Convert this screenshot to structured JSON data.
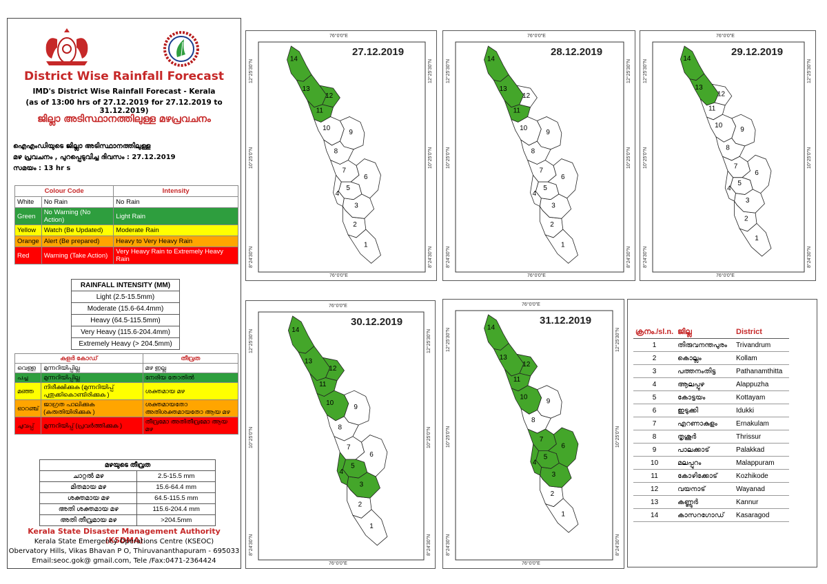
{
  "header": {
    "title": "District Wise Rainfall Forecast",
    "subtitle1": "IMD's District Wise Rainfall Forecast - Kerala",
    "subtitle2": "(as of 13:00 hrs of 27.12.2019  for 27.12.2019  to 31.12.2019)",
    "mal_title": "ജില്ലാ അടിസ്ഥാനത്തിലുള്ള മഴപ്രവചനം",
    "mal_line1": "ഐഎംഡിയുടെ ജില്ലാ      അടിസ്ഥാനത്തിലുള്ള",
    "mal_line2": "മഴ പ്രവചനം , പുറപ്പെടുവിച്ച      ദിവസം : 27.12.2019",
    "mal_line3": "സമയം : 13  hr s"
  },
  "colour_code": {
    "headers": [
      "Colour Code",
      "Intensity"
    ],
    "rows": [
      {
        "name": "White",
        "meaning": "No Rain",
        "intensity": "No Rain",
        "color": "#ffffff"
      },
      {
        "name": "Green",
        "meaning": "No Warning (No Action)",
        "intensity": "Light Rain",
        "color": "#2e9e3e"
      },
      {
        "name": "Yellow",
        "meaning": "Watch (Be Updated)",
        "intensity": "Moderate Rain",
        "color": "#ffff00"
      },
      {
        "name": "Orange",
        "meaning": "Alert (Be prepared)",
        "intensity": "Heavy to Very Heavy Rain",
        "color": "#ffa500"
      },
      {
        "name": "Red",
        "meaning": "Warning (Take Action)",
        "intensity": "Very Heavy Rain to Extremely Heavy Rain",
        "color": "#ff0000"
      }
    ]
  },
  "rainfall_intensity": {
    "title": "RAINFALL INTENSITY (MM)",
    "rows": [
      "Light (2.5-15.5mm)",
      "Moderate (15.6-64.4mm)",
      "Heavy (64.5-115.5mm)",
      "Very Heavy (115.6-204.4mm)",
      "Extremely Heavy (> 204.5mm)"
    ]
  },
  "mal_colour_code": {
    "headers": [
      "കളർ കോഡ്",
      "തീവ്രത"
    ],
    "rows": [
      {
        "name": "വെള്ള",
        "meaning": "മുന്നറിയിപ്പില്ല",
        "intensity": "മഴ ഇല്ല",
        "color": "#ffffff"
      },
      {
        "name": "പച്ച",
        "meaning": "മുന്നറിയിപ്പില്ല",
        "intensity": "നേരിയ തോതിൽ",
        "color": "#2e9e3e"
      },
      {
        "name": "മഞ്ഞ",
        "meaning": "നിരീക്ഷിക്കുക (മുന്നറിയിപ്പ് പുതുക്കികൊണ്ടിരിക്കുക )",
        "intensity": "ശക്തമായ മഴ",
        "color": "#ffff00"
      },
      {
        "name": "ഓറഞ്ച്",
        "meaning": "ജാഗ്രത പാലിക്കുക (കരുതിയിരിക്കുക )",
        "intensity": "ശക്തമായതോ അതിശക്തമായതോ ആയ മഴ",
        "color": "#ffa500"
      },
      {
        "name": "ചുവപ്പ്",
        "meaning": "മുന്നറിയിപ്പ് (പ്രവർത്തിക്കുക )",
        "intensity": "തീവ്രമോ അതിതീവ്രമോ ആയ മഴ",
        "color": "#ff0000"
      }
    ]
  },
  "mal_intensity": {
    "title": "മഴയുടെ തീവ്രത",
    "rows": [
      {
        "label": "ചാറ്റൽ മഴ",
        "range": "2.5-15.5 mm"
      },
      {
        "label": "മിതമായ മഴ",
        "range": "15.6-64.4 mm"
      },
      {
        "label": "ശക്തമായ മഴ",
        "range": "64.5-115.5 mm"
      },
      {
        "label": "അതി ശക്തമായ മഴ",
        "range": "115.6-204.4 mm"
      },
      {
        "label": "അതി തീവ്രമായ മഴ",
        "range": ">204.5mm"
      }
    ]
  },
  "footer": {
    "line1": "Kerala State Disaster Management Authority (KSDMA)",
    "line2": "Kerala State Emergency Operations Centre (KSEOC)",
    "line3": "Obervatory Hills, Vikas Bhavan P O, Thiruvananthapuram - 695033",
    "line4": "Email:seoc.gok@ gmail.com, Tele /Fax:0471-2364424"
  },
  "coords": {
    "lon": "76°0'0\"E",
    "lat_n": "12°25'30\"N",
    "lat_m": "10°25'0\"N",
    "lat_s": "8°24'30\"N"
  },
  "colors": {
    "green": "#44a62a",
    "white": "#ffffff",
    "border": "#555555"
  },
  "maps": [
    {
      "date": "27.12.2019",
      "green": [
        11,
        12,
        13,
        14
      ]
    },
    {
      "date": "28.12.2019",
      "green": [
        11,
        13,
        14
      ]
    },
    {
      "date": "29.12.2019",
      "green": [
        13,
        14
      ]
    },
    {
      "date": "30.12.2019",
      "green": [
        3,
        4,
        5,
        10,
        11,
        12,
        13,
        14
      ]
    },
    {
      "date": "31.12.2019",
      "green": [
        3,
        4,
        5,
        6,
        7,
        10,
        11,
        12,
        13,
        14
      ]
    }
  ],
  "districts": {
    "headers": [
      "ക്രനം./sl.n.",
      "ജില്ല",
      "District"
    ],
    "rows": [
      {
        "n": "1",
        "ml": "തിരുവനന്തപുരം",
        "en": "Trivandrum"
      },
      {
        "n": "2",
        "ml": "കൊല്ലം",
        "en": "Kollam"
      },
      {
        "n": "3",
        "ml": "പത്തനംതിട്ട",
        "en": "Pathanamthitta"
      },
      {
        "n": "4",
        "ml": "ആലപ്പുഴ",
        "en": "Alappuzha"
      },
      {
        "n": "5",
        "ml": "കോട്ടയം",
        "en": "Kottayam"
      },
      {
        "n": "6",
        "ml": "ഇടുക്കി",
        "en": "Idukki"
      },
      {
        "n": "7",
        "ml": "എറണാകുളം",
        "en": "Ernakulam"
      },
      {
        "n": "8",
        "ml": "തൃശൂർ",
        "en": "Thrissur"
      },
      {
        "n": "9",
        "ml": "പാലക്കാട്",
        "en": "Palakkad"
      },
      {
        "n": "10",
        "ml": "മലപ്പുറം",
        "en": "Malappuram"
      },
      {
        "n": "11",
        "ml": "കോഴിക്കോട്",
        "en": "Kozhikode"
      },
      {
        "n": "12",
        "ml": "വയനാട്",
        "en": "Wayanad"
      },
      {
        "n": "13",
        "ml": "കണ്ണൂർ",
        "en": "Kannur"
      },
      {
        "n": "14",
        "ml": "കാസറഗോഡ്",
        "en": "Kasaragod"
      }
    ]
  }
}
